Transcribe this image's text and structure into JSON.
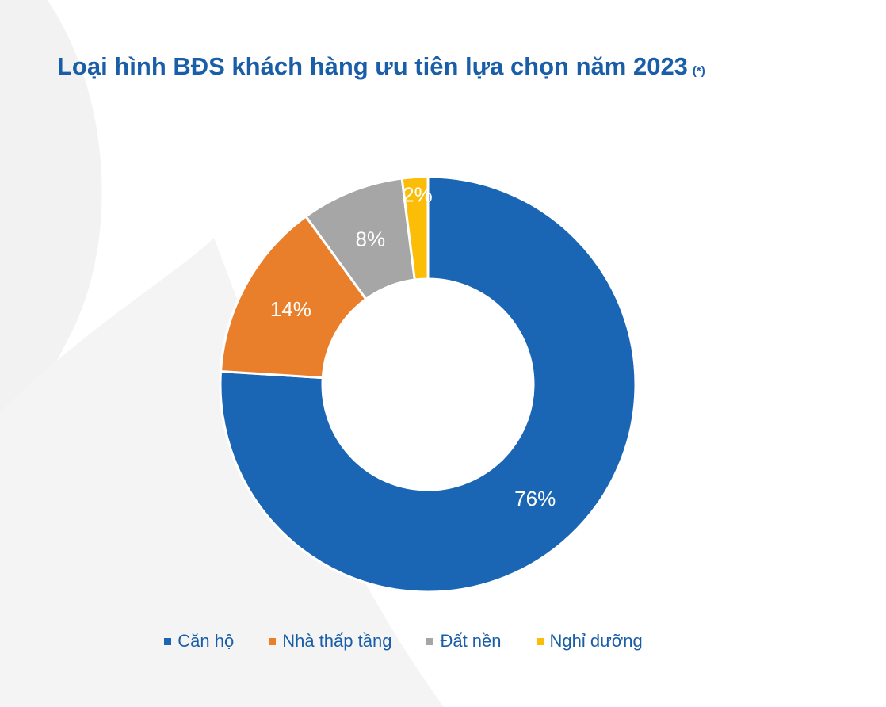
{
  "header": {
    "title": "Loại hình BĐS khách hàng ưu tiên lựa chọn năm 2023",
    "note": "(*)"
  },
  "chart_data": {
    "type": "pie",
    "variant": "donut",
    "categories": [
      "Căn hộ",
      "Nhà thấp tầng",
      "Đất nền",
      "Nghỉ dưỡng"
    ],
    "values": [
      76,
      14,
      8,
      2
    ],
    "data_labels": [
      "76%",
      "14%",
      "8%",
      "2%"
    ],
    "unit": "%",
    "colors": [
      "#1a66b4",
      "#ea7f2b",
      "#a6a6a6",
      "#fbbd08"
    ],
    "start": "top",
    "direction": "clockwise",
    "legend": "bottom"
  },
  "style": {
    "title_color": "#1a5ea8",
    "legend_text_color": "#1a5ea8"
  }
}
